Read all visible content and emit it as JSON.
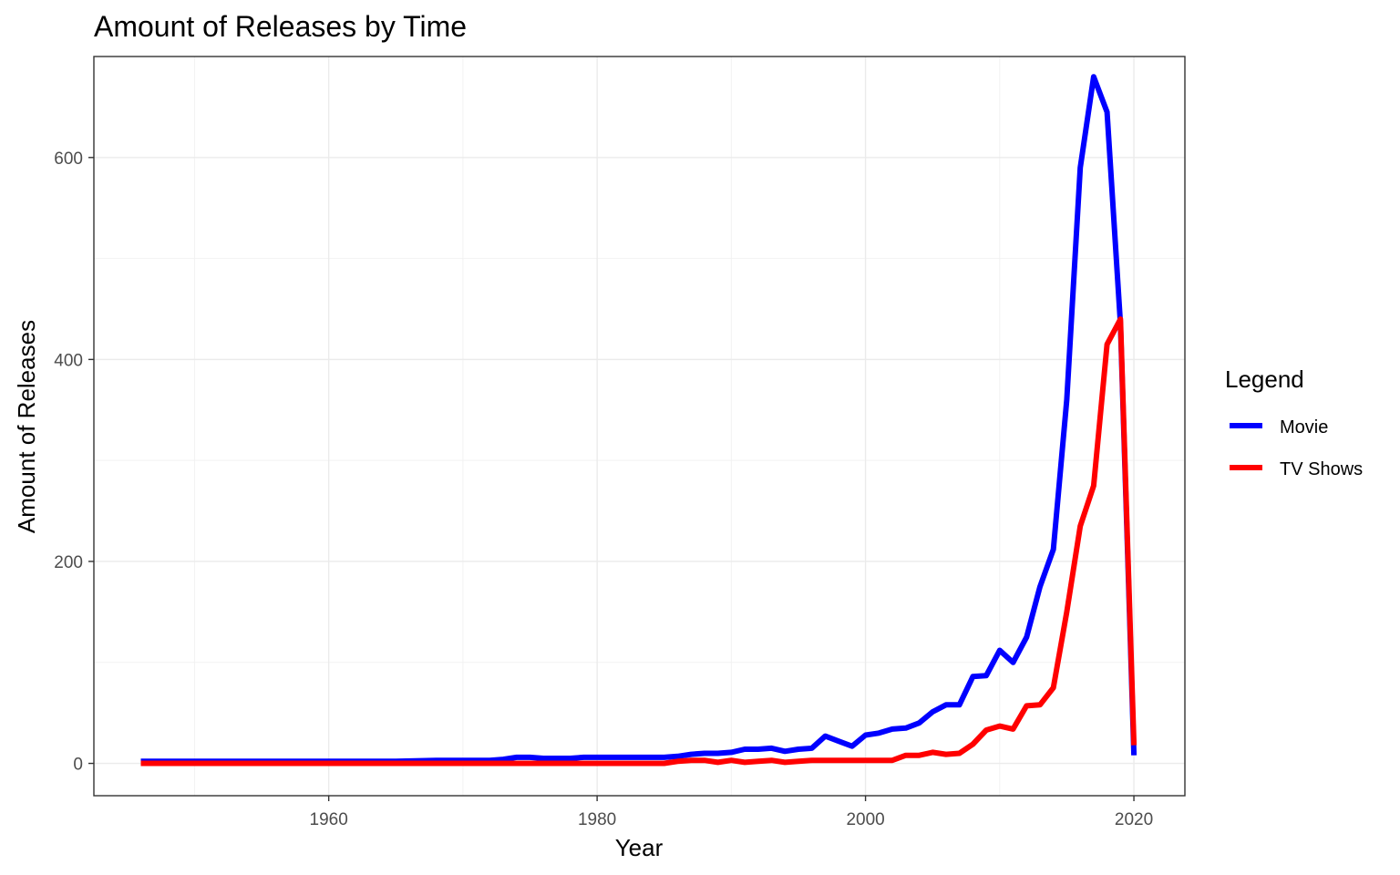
{
  "chart_data": {
    "type": "line",
    "title": "Amount of Releases by Time",
    "xlabel": "Year",
    "ylabel": "Amount of Releases",
    "xlim": [
      1942.5,
      2023.8
    ],
    "ylim": [
      -32,
      700
    ],
    "x_ticks": [
      1960,
      1980,
      2000,
      2020
    ],
    "y_ticks": [
      0,
      200,
      400,
      600
    ],
    "grid": true,
    "legend": {
      "title": "Legend",
      "position": "right"
    },
    "series": [
      {
        "name": "Movie",
        "color": "#0000ff",
        "x": [
          1946,
          1950,
          1955,
          1960,
          1965,
          1968,
          1970,
          1972,
          1973,
          1974,
          1975,
          1976,
          1977,
          1978,
          1979,
          1980,
          1981,
          1982,
          1983,
          1984,
          1985,
          1986,
          1987,
          1988,
          1989,
          1990,
          1991,
          1992,
          1993,
          1994,
          1995,
          1996,
          1997,
          1998,
          1999,
          2000,
          2001,
          2002,
          2003,
          2004,
          2005,
          2006,
          2007,
          2008,
          2009,
          2010,
          2011,
          2012,
          2013,
          2014,
          2015,
          2016,
          2017,
          2018,
          2019,
          2020
        ],
        "y": [
          2,
          2,
          2,
          2,
          2,
          3,
          3,
          3,
          4,
          6,
          6,
          5,
          5,
          5,
          6,
          6,
          6,
          6,
          6,
          6,
          6,
          7,
          9,
          10,
          10,
          11,
          14,
          14,
          15,
          12,
          14,
          15,
          27,
          22,
          17,
          28,
          30,
          34,
          35,
          40,
          51,
          58,
          58,
          86,
          87,
          112,
          100,
          125,
          175,
          212,
          360,
          590,
          680,
          645,
          435,
          8
        ]
      },
      {
        "name": "TV Shows",
        "color": "#ff0000",
        "x": [
          1946,
          1950,
          1960,
          1970,
          1980,
          1985,
          1986,
          1987,
          1988,
          1989,
          1990,
          1991,
          1992,
          1993,
          1994,
          1995,
          1996,
          1997,
          1998,
          1999,
          2000,
          2001,
          2002,
          2003,
          2004,
          2005,
          2006,
          2007,
          2008,
          2009,
          2010,
          2011,
          2012,
          2013,
          2014,
          2015,
          2016,
          2017,
          2018,
          2019,
          2020
        ],
        "y": [
          0,
          0,
          0,
          0,
          0,
          0,
          2,
          3,
          3,
          1,
          3,
          1,
          2,
          3,
          1,
          2,
          3,
          3,
          3,
          3,
          3,
          3,
          3,
          8,
          8,
          11,
          9,
          10,
          19,
          33,
          37,
          34,
          57,
          58,
          75,
          150,
          235,
          275,
          415,
          440,
          18
        ]
      }
    ]
  }
}
